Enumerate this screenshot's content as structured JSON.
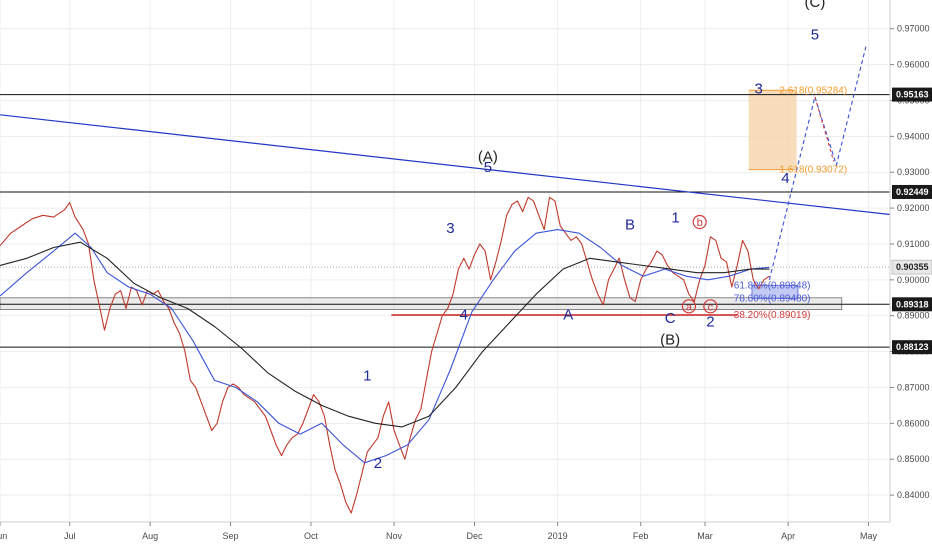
{
  "chart_data": {
    "type": "line",
    "series": [
      {
        "values": [
          [
            0,
            0.9095
          ],
          [
            4,
            0.913
          ],
          [
            8,
            0.915
          ],
          [
            12,
            0.917
          ],
          [
            16,
            0.918
          ],
          [
            20,
            0.9175
          ],
          [
            24,
            0.9195
          ],
          [
            26,
            0.9215
          ],
          [
            28,
            0.9175
          ],
          [
            31,
            0.914
          ],
          [
            33,
            0.91
          ],
          [
            35,
            0.9
          ],
          [
            37,
            0.893
          ],
          [
            39,
            0.886
          ],
          [
            41,
            0.892
          ],
          [
            43,
            0.896
          ],
          [
            45,
            0.897
          ],
          [
            47,
            0.892
          ],
          [
            49,
            0.898
          ],
          [
            51,
            0.897
          ],
          [
            53,
            0.893
          ],
          [
            55,
            0.897
          ],
          [
            57,
            0.896
          ],
          [
            59,
            0.897
          ],
          [
            61,
            0.894
          ],
          [
            63,
            0.892
          ],
          [
            65,
            0.888
          ],
          [
            67,
            0.885
          ],
          [
            69,
            0.88
          ],
          [
            71,
            0.872
          ],
          [
            73,
            0.87
          ],
          [
            75,
            0.866
          ],
          [
            77,
            0.862
          ],
          [
            79,
            0.858
          ],
          [
            81,
            0.86
          ],
          [
            83,
            0.866
          ],
          [
            85,
            0.87
          ],
          [
            87,
            0.871
          ],
          [
            89,
            0.87
          ],
          [
            91,
            0.868
          ],
          [
            93,
            0.867
          ],
          [
            95,
            0.866
          ],
          [
            97,
            0.864
          ],
          [
            99,
            0.862
          ],
          [
            101,
            0.858
          ],
          [
            103,
            0.854
          ],
          [
            105,
            0.851
          ],
          [
            107,
            0.854
          ],
          [
            109,
            0.856
          ],
          [
            111,
            0.857
          ],
          [
            113,
            0.86
          ],
          [
            115,
            0.864
          ],
          [
            117,
            0.868
          ],
          [
            119,
            0.866
          ],
          [
            121,
            0.862
          ],
          [
            123,
            0.854
          ],
          [
            125,
            0.847
          ],
          [
            127,
            0.843
          ],
          [
            129,
            0.838
          ],
          [
            131,
            0.835
          ],
          [
            133,
            0.84
          ],
          [
            135,
            0.846
          ],
          [
            137,
            0.852
          ],
          [
            139,
            0.854
          ],
          [
            141,
            0.856
          ],
          [
            143,
            0.862
          ],
          [
            145,
            0.866
          ],
          [
            147,
            0.858
          ],
          [
            149,
            0.854
          ],
          [
            151,
            0.85
          ],
          [
            153,
            0.856
          ],
          [
            155,
            0.861
          ],
          [
            157,
            0.864
          ],
          [
            159,
            0.872
          ],
          [
            161,
            0.88
          ],
          [
            163,
            0.885
          ],
          [
            165,
            0.89
          ],
          [
            167,
            0.892
          ],
          [
            169,
            0.896
          ],
          [
            171,
            0.903
          ],
          [
            173,
            0.906
          ],
          [
            175,
            0.903
          ],
          [
            177,
            0.907
          ],
          [
            179,
            0.91
          ],
          [
            181,
            0.908
          ],
          [
            183,
            0.9
          ],
          [
            185,
            0.905
          ],
          [
            187,
            0.911
          ],
          [
            189,
            0.918
          ],
          [
            191,
            0.921
          ],
          [
            193,
            0.922
          ],
          [
            195,
            0.919
          ],
          [
            197,
            0.923
          ],
          [
            199,
            0.922
          ],
          [
            201,
            0.918
          ],
          [
            203,
            0.914
          ],
          [
            205,
            0.923
          ],
          [
            207,
            0.922
          ],
          [
            209,
            0.915
          ],
          [
            211,
            0.913
          ],
          [
            213,
            0.911
          ],
          [
            215,
            0.912
          ],
          [
            217,
            0.91
          ],
          [
            219,
            0.905
          ],
          [
            221,
            0.9
          ],
          [
            223,
            0.896
          ],
          [
            225,
            0.893
          ],
          [
            227,
            0.9
          ],
          [
            229,
            0.903
          ],
          [
            231,
            0.906
          ],
          [
            233,
            0.9
          ],
          [
            235,
            0.895
          ],
          [
            237,
            0.894
          ],
          [
            239,
            0.9
          ],
          [
            241,
            0.903
          ],
          [
            243,
            0.905
          ],
          [
            245,
            0.908
          ],
          [
            247,
            0.907
          ],
          [
            249,
            0.904
          ],
          [
            251,
            0.902
          ],
          [
            253,
            0.901
          ],
          [
            255,
            0.9
          ],
          [
            257,
            0.896
          ],
          [
            259,
            0.894
          ],
          [
            261,
            0.9
          ],
          [
            263,
            0.904
          ],
          [
            265,
            0.912
          ],
          [
            267,
            0.911
          ],
          [
            269,
            0.906
          ],
          [
            271,
            0.905
          ],
          [
            273,
            0.898
          ],
          [
            275,
            0.904
          ],
          [
            277,
            0.911
          ],
          [
            279,
            0.908
          ],
          [
            281,
            0.9
          ],
          [
            283,
            0.8975
          ],
          [
            285,
            0.9
          ],
          [
            287,
            0.901
          ]
        ]
      },
      {
        "values": [
          [
            0,
            0.8955
          ],
          [
            10,
            0.902
          ],
          [
            20,
            0.908
          ],
          [
            28,
            0.913
          ],
          [
            34,
            0.909
          ],
          [
            40,
            0.902
          ],
          [
            48,
            0.898
          ],
          [
            56,
            0.896
          ],
          [
            64,
            0.892
          ],
          [
            72,
            0.883
          ],
          [
            80,
            0.872
          ],
          [
            88,
            0.87
          ],
          [
            96,
            0.866
          ],
          [
            104,
            0.86
          ],
          [
            112,
            0.857
          ],
          [
            120,
            0.86
          ],
          [
            128,
            0.854
          ],
          [
            136,
            0.849
          ],
          [
            144,
            0.851
          ],
          [
            152,
            0.854
          ],
          [
            160,
            0.861
          ],
          [
            168,
            0.875
          ],
          [
            176,
            0.891
          ],
          [
            184,
            0.9
          ],
          [
            192,
            0.908
          ],
          [
            200,
            0.913
          ],
          [
            208,
            0.914
          ],
          [
            216,
            0.913
          ],
          [
            224,
            0.909
          ],
          [
            232,
            0.904
          ],
          [
            240,
            0.901
          ],
          [
            248,
            0.903
          ],
          [
            256,
            0.901
          ],
          [
            264,
            0.9
          ],
          [
            272,
            0.901
          ],
          [
            280,
            0.903
          ],
          [
            287,
            0.9035
          ]
        ]
      },
      {
        "values": [
          [
            0,
            0.904
          ],
          [
            10,
            0.906
          ],
          [
            20,
            0.909
          ],
          [
            30,
            0.9105
          ],
          [
            40,
            0.906
          ],
          [
            50,
            0.899
          ],
          [
            60,
            0.895
          ],
          [
            70,
            0.892
          ],
          [
            80,
            0.887
          ],
          [
            90,
            0.881
          ],
          [
            100,
            0.874
          ],
          [
            110,
            0.869
          ],
          [
            120,
            0.865
          ],
          [
            130,
            0.862
          ],
          [
            140,
            0.86
          ],
          [
            150,
            0.859
          ],
          [
            160,
            0.862
          ],
          [
            170,
            0.87
          ],
          [
            180,
            0.88
          ],
          [
            190,
            0.888
          ],
          [
            200,
            0.896
          ],
          [
            210,
            0.903
          ],
          [
            220,
            0.906
          ],
          [
            230,
            0.905
          ],
          [
            240,
            0.904
          ],
          [
            250,
            0.903
          ],
          [
            260,
            0.902
          ],
          [
            270,
            0.902
          ],
          [
            280,
            0.903
          ],
          [
            287,
            0.903
          ]
        ]
      }
    ],
    "projection": [
      [
        287,
        0.9
      ],
      [
        304,
        0.951
      ],
      [
        312,
        0.932
      ],
      [
        323,
        0.965
      ]
    ],
    "projection_alt": [
      [
        304,
        0.951
      ],
      [
        311,
        0.933
      ]
    ],
    "x_ticks": [
      {
        "x": 0,
        "label": "Jun"
      },
      {
        "x": 26,
        "label": "Jul"
      },
      {
        "x": 56,
        "label": "Aug"
      },
      {
        "x": 86,
        "label": "Sep"
      },
      {
        "x": 116,
        "label": "Oct"
      },
      {
        "x": 147,
        "label": "Nov"
      },
      {
        "x": 177,
        "label": "Dec"
      },
      {
        "x": 208,
        "label": "2019"
      },
      {
        "x": 239,
        "label": "Feb"
      },
      {
        "x": 263,
        "label": "Mar"
      },
      {
        "x": 294,
        "label": "Apr"
      },
      {
        "x": 324,
        "label": "May"
      }
    ],
    "y_ticks": [
      0.84,
      0.85,
      0.86,
      0.87,
      0.88,
      0.89,
      0.9,
      0.91,
      0.92,
      0.93,
      0.94,
      0.95,
      0.96,
      0.97
    ],
    "y_tick_labels": [
      "0.84000",
      "0.85000",
      "0.86000",
      "0.87000",
      "0.88000",
      "0.89000",
      "0.90000",
      "0.91000",
      "0.92000",
      "0.93000",
      "0.94000",
      "0.95000",
      "0.96000",
      "0.97000"
    ],
    "xlim": [
      0,
      332
    ],
    "ylim": [
      0.8325,
      0.978
    ],
    "h_levels": [
      {
        "y": 0.95163,
        "label": "0.95163"
      },
      {
        "y": 0.92449,
        "label": "0.92449"
      },
      {
        "y": 0.89318,
        "label": "0.89318"
      },
      {
        "y": 0.88123,
        "label": "0.88123"
      }
    ],
    "current": {
      "y": 0.90355,
      "label": "0.90355"
    },
    "trendline": [
      [
        0,
        0.946
      ],
      [
        332,
        0.9182
      ]
    ],
    "support_line": {
      "x0": 146,
      "x1": 275,
      "y": 0.89019
    },
    "zone": {
      "x0": 0,
      "x1": 314,
      "y0": 0.8917,
      "y1": 0.895
    },
    "target_box": {
      "x0": 282,
      "x1": 283.5,
      "y0": 0.8948,
      "y1": 0.89848
    },
    "fib_box": {
      "x0": 283,
      "x1": 286,
      "y0": 0.93072,
      "y1": 0.95284
    },
    "fib_labels": [
      {
        "x": 287,
        "y": 0.95284,
        "text": "2.618(0.95284)",
        "color": "#f29b2e"
      },
      {
        "x": 287,
        "y": 0.93072,
        "text": "1.618(0.93072)",
        "color": "#f29b2e"
      },
      {
        "x": 270,
        "y": 0.89848,
        "text": "61.80%(0.89848)",
        "color": "#4a5bd4"
      },
      {
        "x": 270,
        "y": 0.8948,
        "text": "78.60%(0.89480)",
        "color": "#4a5bd4"
      },
      {
        "x": 270,
        "y": 0.89019,
        "text": "38.20%(0.89019)",
        "color": "#d23a3a"
      }
    ],
    "wave_labels": [
      {
        "x": 137,
        "y": 0.872,
        "text": "1",
        "color": "#1f2a99"
      },
      {
        "x": 141,
        "y": 0.8475,
        "text": "2",
        "color": "#1f2a99"
      },
      {
        "x": 168,
        "y": 0.913,
        "text": "3",
        "color": "#1f2a99"
      },
      {
        "x": 173,
        "y": 0.889,
        "text": "4",
        "color": "#1f2a99"
      },
      {
        "x": 182,
        "y": 0.93,
        "text": "5",
        "color": "#1f2a99"
      },
      {
        "x": 182,
        "y": 0.933,
        "text": "(A)",
        "color": "#222222"
      },
      {
        "x": 212,
        "y": 0.889,
        "text": "A",
        "color": "#1f2a99"
      },
      {
        "x": 235,
        "y": 0.914,
        "text": "B",
        "color": "#1f2a99"
      },
      {
        "x": 250,
        "y": 0.888,
        "text": "C",
        "color": "#1f2a99"
      },
      {
        "x": 250,
        "y": 0.882,
        "text": "(B)",
        "color": "#222222"
      },
      {
        "x": 252,
        "y": 0.916,
        "text": "1",
        "color": "#1f2a99"
      },
      {
        "x": 265,
        "y": 0.887,
        "text": "2",
        "color": "#1f2a99"
      },
      {
        "x": 283,
        "y": 0.952,
        "text": "3",
        "color": "#1f2a99"
      },
      {
        "x": 293,
        "y": 0.927,
        "text": "4",
        "color": "#1f2a99"
      },
      {
        "x": 304,
        "y": 0.967,
        "text": "5",
        "color": "#1f2a99"
      },
      {
        "x": 304,
        "y": 0.976,
        "text": "(C)",
        "color": "#222222"
      }
    ],
    "circled_labels": [
      {
        "x": 261,
        "y": 0.915,
        "text": "b",
        "color": "#d23a3a"
      },
      {
        "x": 257,
        "y": 0.8915,
        "text": "a",
        "color": "#d23a3a"
      },
      {
        "x": 265,
        "y": 0.8915,
        "text": "c",
        "color": "#d23a3a"
      }
    ],
    "colors": {
      "price": "#c0392b",
      "ma_fast": "#3a55d8",
      "ma_slow": "#222222",
      "trend": "#2236c8",
      "support": "#cc2222",
      "projection": "#3a4fd8",
      "projection_alt": "#e03c3c",
      "fib_fill": "#f6d2a6",
      "fib_stroke": "#f29b2e",
      "target_fill": "#aab3f0",
      "zone_fill": "#d9d9d9",
      "tag_bg": "#1a1a1a",
      "current_bg": "#e7e7e7",
      "grid": "#eeeeee"
    }
  }
}
